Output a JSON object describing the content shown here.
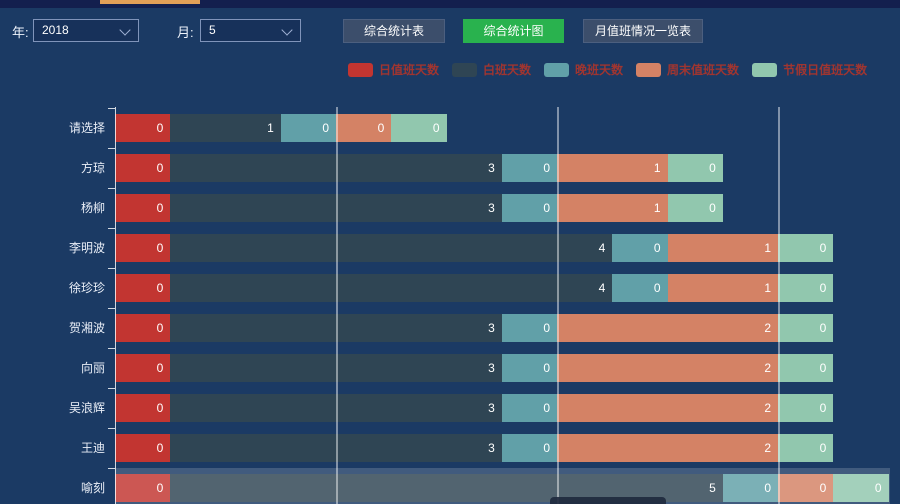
{
  "app": {
    "background_color": "#1b3a64",
    "top_tab_indicator_color": "#e2a057"
  },
  "controls": {
    "year_label": "年:",
    "year_value": "2018",
    "month_label": "月:",
    "month_value": "5",
    "buttons": [
      {
        "label": "综合统计表",
        "active": false
      },
      {
        "label": "综合统计图",
        "active": true
      },
      {
        "label": "月值班情况一览表",
        "active": false
      }
    ],
    "active_button_color": "#29b24e",
    "inactive_button_color": "#3c4e6b"
  },
  "legend": {
    "text_color": "#a03530",
    "items": [
      {
        "label": "日值班天数",
        "color": "#c23531"
      },
      {
        "label": "白班天数",
        "color": "#2f4554"
      },
      {
        "label": "晚班天数",
        "color": "#61a0a8"
      },
      {
        "label": "周末值班天数",
        "color": "#d48265"
      },
      {
        "label": "节假日值班天数",
        "color": "#91c7ae"
      }
    ]
  },
  "chart_data": {
    "type": "bar",
    "orientation": "horizontal",
    "stacked": true,
    "title": "",
    "xlabel": "",
    "ylabel": "",
    "xlim": [
      0,
      7
    ],
    "gridline_values": [
      2,
      4,
      6
    ],
    "grid_on": true,
    "legend_position": "top",
    "categories": [
      "请选择",
      "方琼",
      "杨柳",
      "李明波",
      "徐珍珍",
      "贺湘波",
      "向丽",
      "吴浪辉",
      "王迪",
      "喻刻"
    ],
    "series": [
      {
        "name": "日值班天数",
        "color": "#c23531",
        "values": [
          0,
          0,
          0,
          0,
          0,
          0,
          0,
          0,
          0,
          0
        ]
      },
      {
        "name": "白班天数",
        "color": "#2f4554",
        "values": [
          1,
          3,
          3,
          4,
          4,
          3,
          3,
          3,
          3,
          5
        ]
      },
      {
        "name": "晚班天数",
        "color": "#61a0a8",
        "values": [
          0,
          0,
          0,
          0,
          0,
          0,
          0,
          0,
          0,
          0
        ]
      },
      {
        "name": "周末值班天数",
        "color": "#d48265",
        "values": [
          0,
          1,
          1,
          1,
          1,
          2,
          2,
          2,
          2,
          0
        ]
      },
      {
        "name": "节假日值班天数",
        "color": "#91c7ae",
        "values": [
          0,
          0,
          0,
          0,
          0,
          0,
          0,
          0,
          0,
          0
        ]
      }
    ],
    "zero_value_rendered_as_units": 0.5,
    "value_labels_shown": true,
    "highlighted_category": "喻刻"
  }
}
